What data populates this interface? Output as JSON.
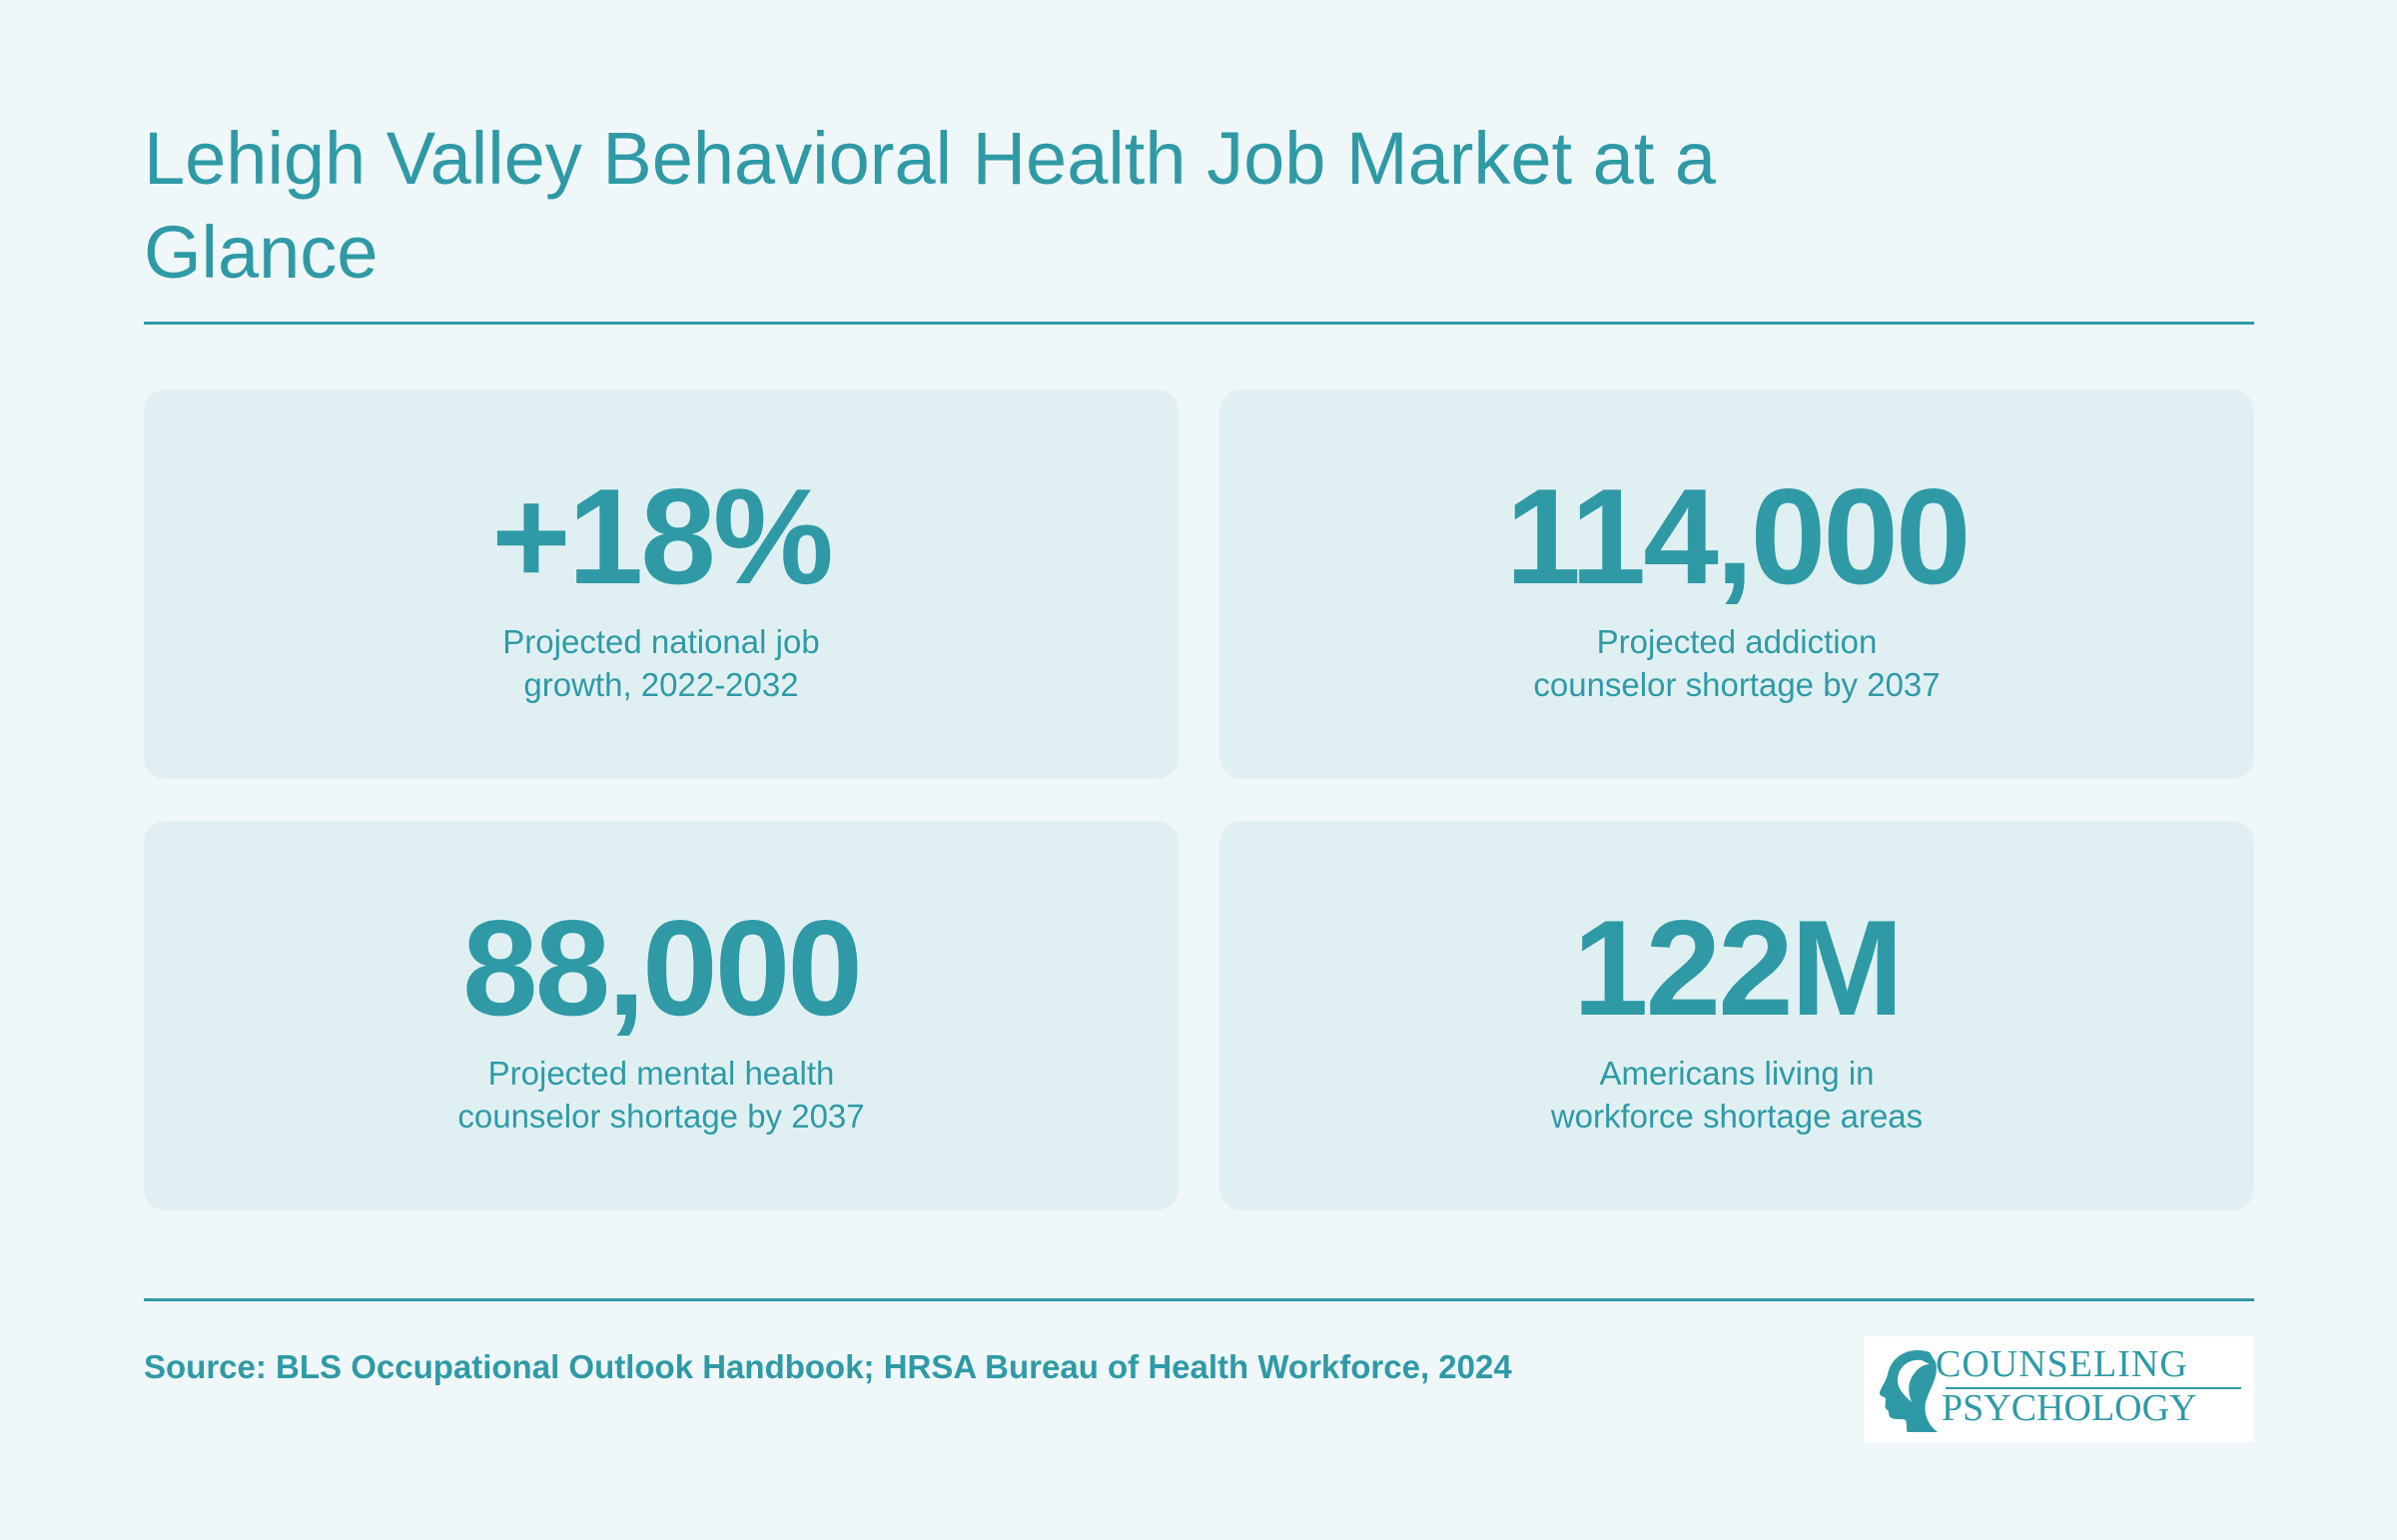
{
  "header": {
    "title": "Lehigh Valley Behavioral Health Job Market at a Glance"
  },
  "stats": [
    {
      "value": "+18%",
      "label": "Projected national job growth, 2022-2032"
    },
    {
      "value": "114,000",
      "label": "Projected addiction counselor shortage by 2037"
    },
    {
      "value": "88,000",
      "label": "Projected mental health counselor shortage by 2037"
    },
    {
      "value": "122M",
      "label": "Americans living in workforce shortage areas"
    }
  ],
  "footer": {
    "source": "Source: BLS Occupational Outlook Handbook; HRSA Bureau of Health Workforce, 2024",
    "logo": {
      "line1": "COUNSELING",
      "line2": "PSYCHOLOGY",
      "icon": "head-profile-icon"
    }
  },
  "colors": {
    "background": "#eff7f8",
    "card": "#e0f0f2",
    "accent": "#2f9aa6"
  }
}
